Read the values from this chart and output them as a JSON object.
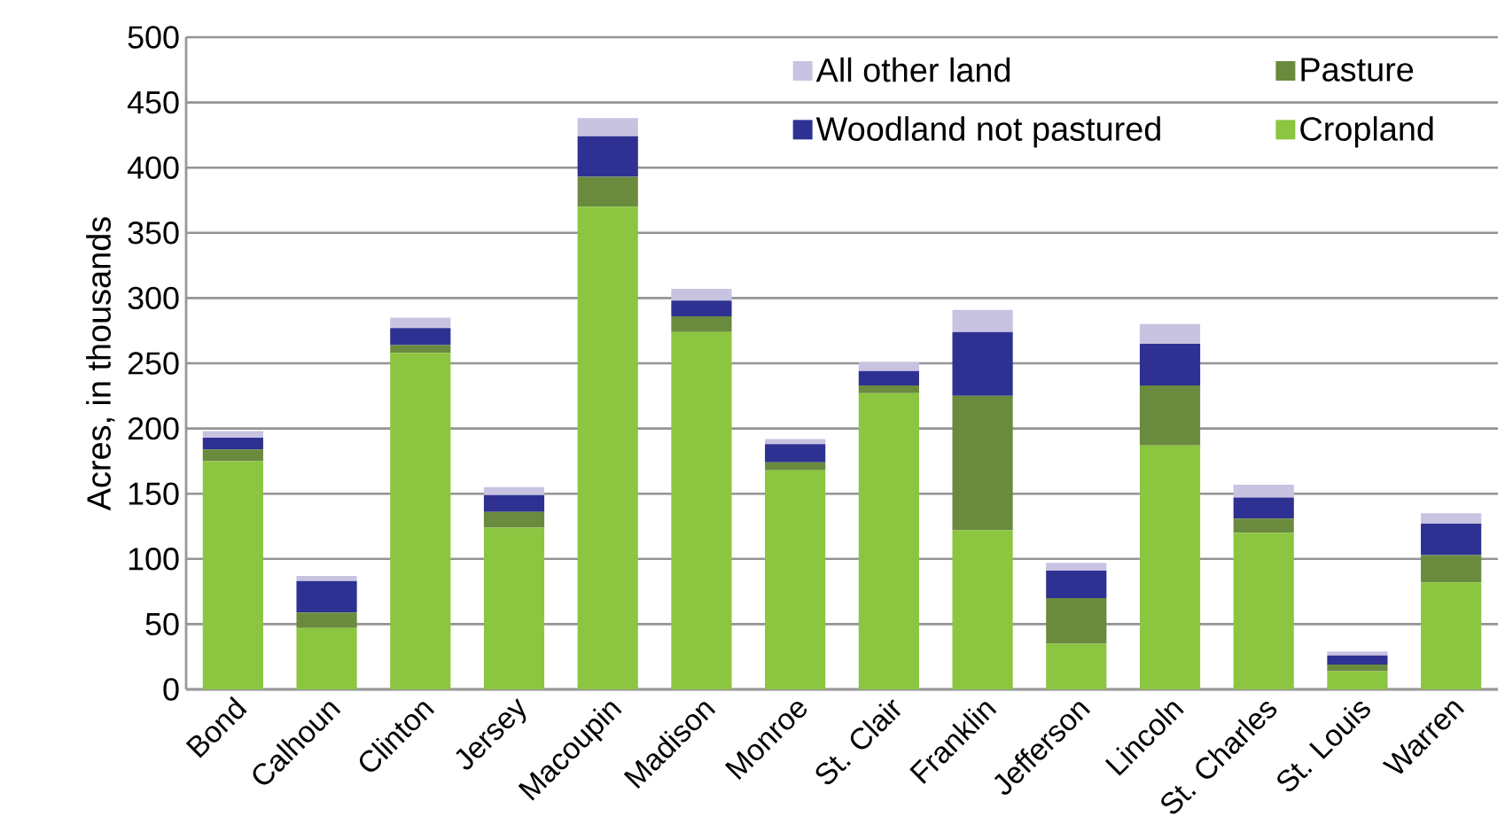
{
  "chart_data": {
    "type": "bar",
    "ylabel": "Acres, in thousands",
    "categories": [
      "Bond",
      "Calhoun",
      "Clinton",
      "Jersey",
      "Macoupin",
      "Madison",
      "Monroe",
      "St. Clair",
      "Franklin",
      "Jefferson",
      "Lincoln",
      "St. Charles",
      "St. Louis",
      "Warren"
    ],
    "series": [
      {
        "name": "Cropland",
        "color": "#8cc540",
        "values": [
          175,
          47,
          258,
          124,
          370,
          274,
          168,
          227,
          122,
          35,
          187,
          120,
          14,
          82
        ]
      },
      {
        "name": "Pasture",
        "color": "#6a8a3e",
        "values": [
          9,
          12,
          6,
          12,
          23,
          12,
          6,
          6,
          103,
          35,
          46,
          11,
          5,
          21
        ]
      },
      {
        "name": "Woodland not pastured",
        "color": "#2e3192",
        "values": [
          9,
          24,
          13,
          13,
          31,
          12,
          14,
          11,
          49,
          21,
          32,
          16,
          7,
          24
        ]
      },
      {
        "name": "All other land",
        "color": "#c7c3e1",
        "values": [
          5,
          4,
          8,
          6,
          14,
          9,
          4,
          7,
          17,
          6,
          15,
          10,
          3,
          8
        ]
      }
    ],
    "stacked": true,
    "ylim": [
      0,
      500
    ],
    "yticks": [
      0,
      50,
      100,
      150,
      200,
      250,
      300,
      350,
      400,
      450,
      500
    ],
    "grid": "y",
    "legend": "top right"
  }
}
